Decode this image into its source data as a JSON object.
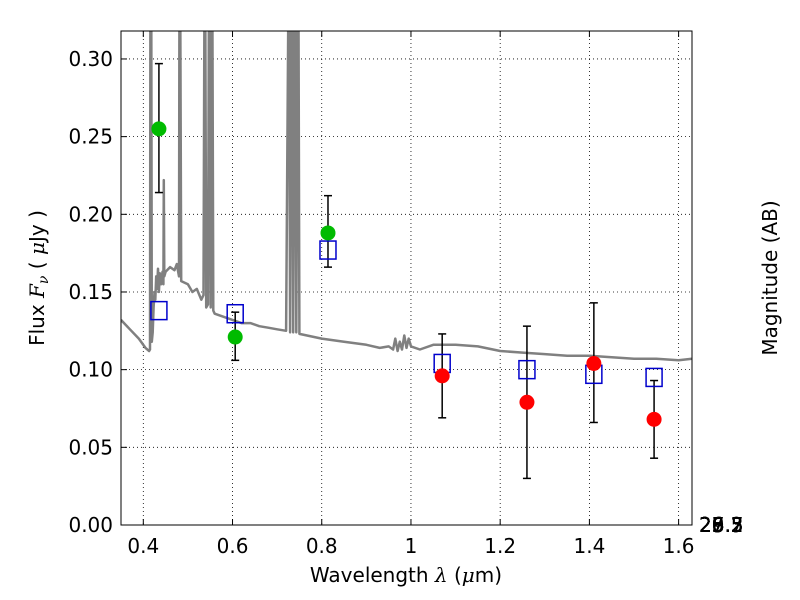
{
  "chart_data": {
    "type": "scatter",
    "xlabel": "Wavelength  λ (μm)",
    "xlabel_parts": [
      "Wavelength  ",
      "λ",
      " (",
      "μ",
      "m)"
    ],
    "ylabel": "Flux  Fν  ( μJy )",
    "ylabel_parts": [
      "Flux  ",
      "F",
      "ν",
      "  ( ",
      "μ",
      "Jy )"
    ],
    "ylabel_right": "Magnitude (AB)",
    "xlim": [
      0.35,
      1.63
    ],
    "ylim": [
      0.0,
      0.318
    ],
    "grid": true,
    "grid_style": "dotted",
    "x_ticks": [
      {
        "v": 0.4,
        "label": "0.4"
      },
      {
        "v": 0.6,
        "label": "0.6"
      },
      {
        "v": 0.8,
        "label": "0.8"
      },
      {
        "v": 1.0,
        "label": "1"
      },
      {
        "v": 1.2,
        "label": "1.2"
      },
      {
        "v": 1.4,
        "label": "1.4"
      },
      {
        "v": 1.6,
        "label": "1.6"
      }
    ],
    "y_ticks": [
      {
        "v": 0.0,
        "label": "0.00"
      },
      {
        "v": 0.05,
        "label": "0.05"
      },
      {
        "v": 0.1,
        "label": "0.10"
      },
      {
        "v": 0.15,
        "label": "0.15"
      },
      {
        "v": 0.2,
        "label": "0.20"
      },
      {
        "v": 0.25,
        "label": "0.25"
      },
      {
        "v": 0.3,
        "label": "0.30"
      }
    ],
    "right_ticks": [
      {
        "mag": 25.2,
        "label": "25.2"
      },
      {
        "mag": 25.3,
        "label": "25.3"
      },
      {
        "mag": 25.5,
        "label": "25.5"
      },
      {
        "mag": 25.7,
        "label": "25.7"
      },
      {
        "mag": 26.0,
        "label": "26"
      },
      {
        "mag": 26.2,
        "label": "26.2"
      },
      {
        "mag": 26.5,
        "label": "26.5"
      },
      {
        "mag": 27.0,
        "label": "27"
      },
      {
        "mag": 27.5,
        "label": "27.5"
      },
      {
        "mag": 28.0,
        "label": "28"
      },
      {
        "mag": 29.0,
        "label": "29"
      }
    ],
    "series": [
      {
        "kind": "line",
        "color": "#808080",
        "points": [
          [
            0.35,
            0.132
          ],
          [
            0.37,
            0.126
          ],
          [
            0.39,
            0.12
          ],
          [
            0.405,
            0.114
          ],
          [
            0.413,
            0.112
          ],
          [
            0.415,
            0.113
          ],
          [
            0.416,
            0.33
          ],
          [
            0.418,
            0.33
          ],
          [
            0.419,
            0.118
          ],
          [
            0.421,
            0.124
          ],
          [
            0.423,
            0.14
          ],
          [
            0.425,
            0.15
          ],
          [
            0.427,
            0.145
          ],
          [
            0.429,
            0.16
          ],
          [
            0.431,
            0.152
          ],
          [
            0.433,
            0.165
          ],
          [
            0.435,
            0.15
          ],
          [
            0.437,
            0.162
          ],
          [
            0.44,
            0.155
          ],
          [
            0.443,
            0.163
          ],
          [
            0.445,
            0.155
          ],
          [
            0.446,
            0.222
          ],
          [
            0.447,
            0.16
          ],
          [
            0.45,
            0.163
          ],
          [
            0.46,
            0.166
          ],
          [
            0.47,
            0.164
          ],
          [
            0.475,
            0.168
          ],
          [
            0.48,
            0.16
          ],
          [
            0.481,
            0.33
          ],
          [
            0.483,
            0.33
          ],
          [
            0.485,
            0.157
          ],
          [
            0.5,
            0.155
          ],
          [
            0.51,
            0.15
          ],
          [
            0.52,
            0.152
          ],
          [
            0.53,
            0.145
          ],
          [
            0.535,
            0.148
          ],
          [
            0.537,
            0.33
          ],
          [
            0.539,
            0.33
          ],
          [
            0.541,
            0.14
          ],
          [
            0.545,
            0.142
          ],
          [
            0.547,
            0.33
          ],
          [
            0.549,
            0.33
          ],
          [
            0.551,
            0.14
          ],
          [
            0.553,
            0.33
          ],
          [
            0.555,
            0.33
          ],
          [
            0.557,
            0.138
          ],
          [
            0.56,
            0.136
          ],
          [
            0.58,
            0.134
          ],
          [
            0.6,
            0.132
          ],
          [
            0.62,
            0.13
          ],
          [
            0.64,
            0.13
          ],
          [
            0.66,
            0.128
          ],
          [
            0.68,
            0.127
          ],
          [
            0.7,
            0.126
          ],
          [
            0.72,
            0.125
          ],
          [
            0.725,
            0.33
          ],
          [
            0.727,
            0.33
          ],
          [
            0.729,
            0.124
          ],
          [
            0.732,
            0.33
          ],
          [
            0.734,
            0.33
          ],
          [
            0.736,
            0.124
          ],
          [
            0.739,
            0.33
          ],
          [
            0.741,
            0.33
          ],
          [
            0.743,
            0.124
          ],
          [
            0.746,
            0.33
          ],
          [
            0.748,
            0.33
          ],
          [
            0.75,
            0.123
          ],
          [
            0.8,
            0.12
          ],
          [
            0.85,
            0.118
          ],
          [
            0.9,
            0.116
          ],
          [
            0.93,
            0.114
          ],
          [
            0.95,
            0.115
          ],
          [
            0.96,
            0.113
          ],
          [
            0.965,
            0.12
          ],
          [
            0.97,
            0.112
          ],
          [
            0.975,
            0.118
          ],
          [
            0.98,
            0.113
          ],
          [
            0.985,
            0.122
          ],
          [
            0.99,
            0.114
          ],
          [
            0.995,
            0.12
          ],
          [
            1.0,
            0.115
          ],
          [
            1.02,
            0.113
          ],
          [
            1.05,
            0.116
          ],
          [
            1.08,
            0.116
          ],
          [
            1.1,
            0.116
          ],
          [
            1.15,
            0.115
          ],
          [
            1.2,
            0.112
          ],
          [
            1.25,
            0.111
          ],
          [
            1.3,
            0.11
          ],
          [
            1.35,
            0.109
          ],
          [
            1.4,
            0.109
          ],
          [
            1.45,
            0.108
          ],
          [
            1.5,
            0.107
          ],
          [
            1.55,
            0.107
          ],
          [
            1.6,
            0.106
          ],
          [
            1.63,
            0.107
          ]
        ]
      },
      {
        "kind": "errorbar",
        "color": "#00bb00",
        "points": [
          {
            "x": 0.435,
            "y": 0.255,
            "lo": 0.214,
            "hi": 0.297
          },
          {
            "x": 0.606,
            "y": 0.121,
            "lo": 0.106,
            "hi": 0.137
          },
          {
            "x": 0.814,
            "y": 0.188,
            "lo": 0.166,
            "hi": 0.212
          }
        ]
      },
      {
        "kind": "errorbar",
        "color": "#ff0000",
        "points": [
          {
            "x": 1.07,
            "y": 0.096,
            "lo": 0.069,
            "hi": 0.123
          },
          {
            "x": 1.26,
            "y": 0.079,
            "lo": 0.03,
            "hi": 0.128
          },
          {
            "x": 1.41,
            "y": 0.104,
            "lo": 0.066,
            "hi": 0.143
          },
          {
            "x": 1.545,
            "y": 0.068,
            "lo": 0.043,
            "hi": 0.093
          }
        ]
      },
      {
        "kind": "open-squares",
        "color": "#0000cc",
        "points": [
          [
            0.435,
            0.138
          ],
          [
            0.606,
            0.136
          ],
          [
            0.814,
            0.177
          ],
          [
            1.07,
            0.104
          ],
          [
            1.26,
            0.1
          ],
          [
            1.41,
            0.097
          ],
          [
            1.545,
            0.095
          ]
        ]
      }
    ]
  }
}
